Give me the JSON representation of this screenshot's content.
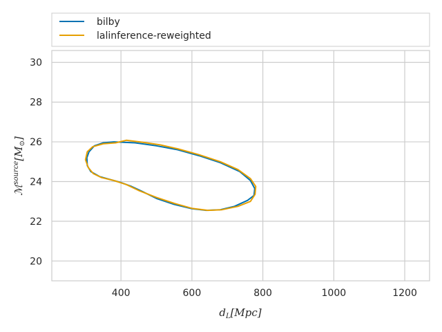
{
  "chart_data": {
    "type": "line",
    "xlabel_main": "d",
    "xlabel_sub": "L",
    "xlabel_unit": "[Mpc]",
    "ylabel_main": "ℳ",
    "ylabel_sup": "source",
    "ylabel_unit": "[M",
    "ylabel_unit_sub": "⊙",
    "ylabel_unit_close": "]",
    "xlim": [
      205,
      1270
    ],
    "ylim": [
      19.0,
      30.6
    ],
    "xticks": [
      400,
      600,
      800,
      1000,
      1200
    ],
    "xtick_labels": [
      "400",
      "600",
      "800",
      "1000",
      "1200"
    ],
    "yticks": [
      20,
      22,
      24,
      26,
      28,
      30
    ],
    "ytick_labels": [
      "20",
      "22",
      "24",
      "26",
      "28",
      "30"
    ],
    "grid": true,
    "legend_position": "top, above plot",
    "colors": {
      "bilby": "#0072b2",
      "lalinference": "#e69f00",
      "grid": "#cccccc",
      "frame": "#cccccc"
    },
    "series": [
      {
        "name": "bilby",
        "color": "#0072b2",
        "points": [
          [
            305,
            24.8
          ],
          [
            304,
            25.2
          ],
          [
            310,
            25.5
          ],
          [
            325,
            25.8
          ],
          [
            350,
            25.95
          ],
          [
            380,
            26.0
          ],
          [
            440,
            25.95
          ],
          [
            500,
            25.8
          ],
          [
            560,
            25.6
          ],
          [
            620,
            25.3
          ],
          [
            680,
            24.95
          ],
          [
            735,
            24.5
          ],
          [
            765,
            24.05
          ],
          [
            777,
            23.65
          ],
          [
            775,
            23.3
          ],
          [
            757,
            23.05
          ],
          [
            720,
            22.75
          ],
          [
            680,
            22.58
          ],
          [
            640,
            22.55
          ],
          [
            600,
            22.63
          ],
          [
            550,
            22.85
          ],
          [
            500,
            23.15
          ],
          [
            460,
            23.5
          ],
          [
            430,
            23.75
          ],
          [
            400,
            23.95
          ],
          [
            370,
            24.1
          ],
          [
            340,
            24.25
          ],
          [
            315,
            24.5
          ],
          [
            305,
            24.8
          ]
        ]
      },
      {
        "name": "lalinference-reweighted",
        "color": "#e69f00",
        "points": [
          [
            300,
            25.1
          ],
          [
            305,
            25.5
          ],
          [
            320,
            25.75
          ],
          [
            350,
            25.9
          ],
          [
            385,
            25.95
          ],
          [
            415,
            26.08
          ],
          [
            460,
            25.98
          ],
          [
            510,
            25.85
          ],
          [
            560,
            25.65
          ],
          [
            620,
            25.35
          ],
          [
            680,
            25.0
          ],
          [
            730,
            24.6
          ],
          [
            765,
            24.15
          ],
          [
            780,
            23.75
          ],
          [
            778,
            23.35
          ],
          [
            765,
            23.0
          ],
          [
            730,
            22.75
          ],
          [
            685,
            22.58
          ],
          [
            645,
            22.55
          ],
          [
            600,
            22.65
          ],
          [
            550,
            22.9
          ],
          [
            500,
            23.2
          ],
          [
            450,
            23.55
          ],
          [
            415,
            23.85
          ],
          [
            380,
            24.05
          ],
          [
            345,
            24.2
          ],
          [
            322,
            24.4
          ],
          [
            308,
            24.7
          ],
          [
            300,
            25.1
          ]
        ]
      }
    ]
  }
}
